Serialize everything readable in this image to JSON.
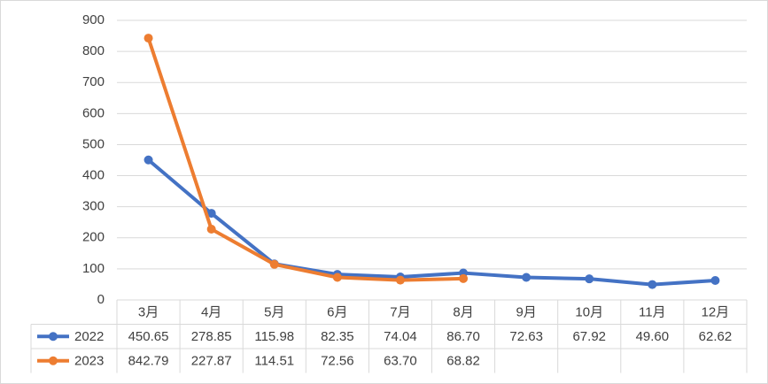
{
  "chart_data": {
    "type": "line",
    "categories": [
      "3月",
      "4月",
      "5月",
      "6月",
      "7月",
      "8月",
      "9月",
      "10月",
      "11月",
      "12月"
    ],
    "series": [
      {
        "name": "2022",
        "color": "#4472c4",
        "values": [
          450.65,
          278.85,
          115.98,
          82.35,
          74.04,
          86.7,
          72.63,
          67.92,
          49.6,
          62.62
        ],
        "value_labels": [
          "450.65",
          "278.85",
          "115.98",
          "82.35",
          "74.04",
          "86.70",
          "72.63",
          "67.92",
          "49.60",
          "62.62"
        ]
      },
      {
        "name": "2023",
        "color": "#ed7d31",
        "values": [
          842.79,
          227.87,
          114.51,
          72.56,
          63.7,
          68.82,
          null,
          null,
          null,
          null
        ],
        "value_labels": [
          "842.79",
          "227.87",
          "114.51",
          "72.56",
          "63.70",
          "68.82",
          null,
          null,
          null,
          null
        ]
      }
    ],
    "ylim": [
      0,
      900
    ],
    "yticks": [
      0,
      100,
      200,
      300,
      400,
      500,
      600,
      700,
      800,
      900
    ],
    "grid": true,
    "data_table": true
  }
}
